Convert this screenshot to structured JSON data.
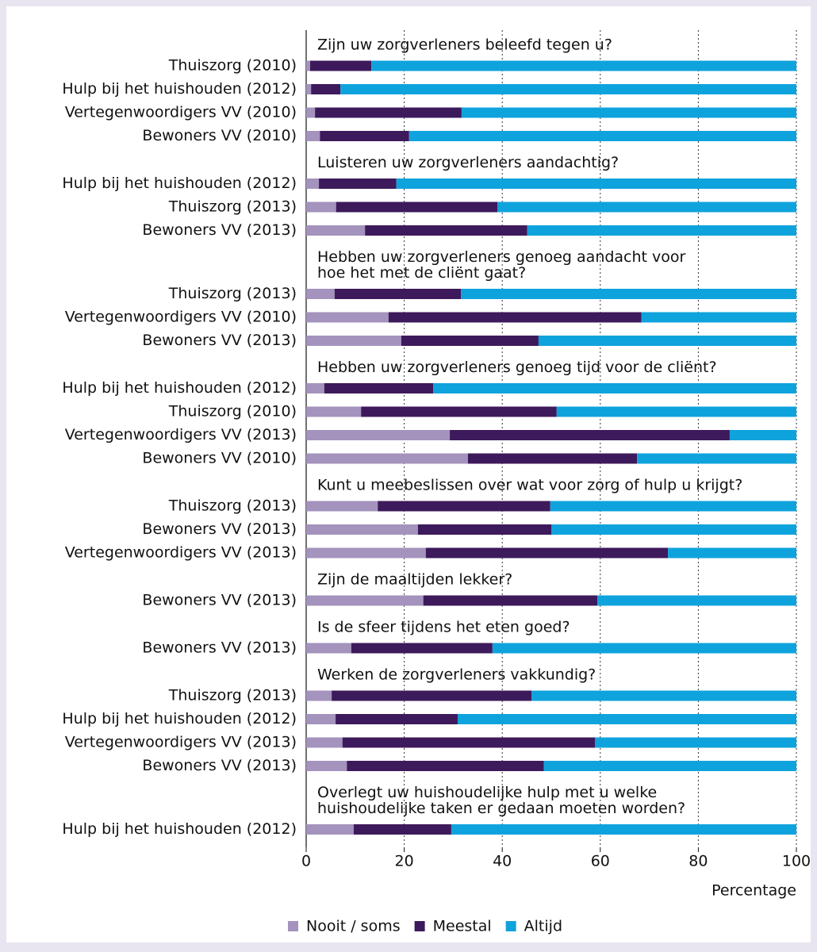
{
  "chart_data": {
    "type": "bar",
    "orientation": "horizontal",
    "stacked": true,
    "x_label": "Percentage",
    "xlim": [
      0,
      100
    ],
    "xticks": [
      0,
      20,
      40,
      60,
      80,
      100
    ],
    "grid": true,
    "legend": "bottom",
    "groups": [
      {
        "title": [
          "Zijn uw zorgverleners beleefd tegen u?"
        ],
        "categories": [
          "Thuiszorg (2010)",
          "Hulp bij het huishouden (2012)",
          "Vertegenwoordigers VV (2010)",
          "Bewoners VV (2010)"
        ]
      },
      {
        "title": [
          "Luisteren uw zorgverleners aandachtig?"
        ],
        "categories": [
          "Hulp bij het huishouden (2012)",
          "Thuiszorg (2013)",
          "Bewoners VV (2013)"
        ]
      },
      {
        "title": [
          "Hebben uw zorgverleners genoeg aandacht voor",
          "hoe het met de cliënt gaat?"
        ],
        "categories": [
          "Thuiszorg (2013)",
          "Vertegenwoordigers VV (2010)",
          "Bewoners VV (2013)"
        ]
      },
      {
        "title": [
          "Hebben uw zorgverleners genoeg tijd voor de cliënt?"
        ],
        "categories": [
          "Hulp bij het huishouden (2012)",
          "Thuiszorg (2010)",
          "Vertegenwoordigers VV (2013)",
          "Bewoners VV (2010)"
        ]
      },
      {
        "title": [
          "Kunt u meebeslissen over wat voor zorg of hulp u krijgt?"
        ],
        "categories": [
          "Thuiszorg (2013)",
          "Bewoners VV (2013)",
          "Vertegenwoordigers VV (2013)"
        ]
      },
      {
        "title": [
          "Zijn de maaltijden lekker?"
        ],
        "categories": [
          "Bewoners VV (2013)"
        ]
      },
      {
        "title": [
          "Is de sfeer tijdens het eten goed?"
        ],
        "categories": [
          "Bewoners VV (2013)"
        ]
      },
      {
        "title": [
          "Werken de zorgverleners vakkundig?"
        ],
        "categories": [
          "Thuiszorg (2013)",
          "Hulp bij het huishouden (2012)",
          "Vertegenwoordigers VV (2013)",
          "Bewoners VV (2013)"
        ]
      },
      {
        "title": [
          "Overlegt uw huishoudelijke hulp met u welke",
          "huishoudelijke taken er gedaan moeten worden?"
        ],
        "categories": [
          "Hulp bij het huishouden (2012)"
        ]
      }
    ],
    "series": [
      {
        "name": "Nooit / soms",
        "color": "#a393bd",
        "values": [
          0.8,
          1,
          1.8,
          2.8,
          2.6,
          6.1,
          12,
          5.8,
          16.8,
          19.4,
          3.7,
          11.2,
          29.3,
          33,
          14.6,
          22.8,
          24.4,
          23.9,
          9.2,
          5.2,
          6,
          7.4,
          8.3,
          9.7
        ]
      },
      {
        "name": "Meestal",
        "color": "#3d1a5b",
        "values": [
          12.5,
          6,
          29.9,
          18.2,
          15.8,
          32.9,
          33.1,
          25.8,
          51.6,
          28,
          22.2,
          39.9,
          57.1,
          34.5,
          35.2,
          27.2,
          49.4,
          35.5,
          28.8,
          40.8,
          24.9,
          51.5,
          40.2,
          19.9
        ]
      },
      {
        "name": "Altijd",
        "color": "#0fa3dd",
        "values": [
          86.7,
          93,
          68.3,
          79,
          81.6,
          61,
          54.9,
          68.4,
          31.6,
          52.6,
          74.1,
          48.9,
          13.6,
          32.5,
          50.2,
          50,
          26.2,
          40.6,
          62,
          54,
          69.1,
          41.1,
          51.5,
          70.4
        ]
      }
    ]
  }
}
